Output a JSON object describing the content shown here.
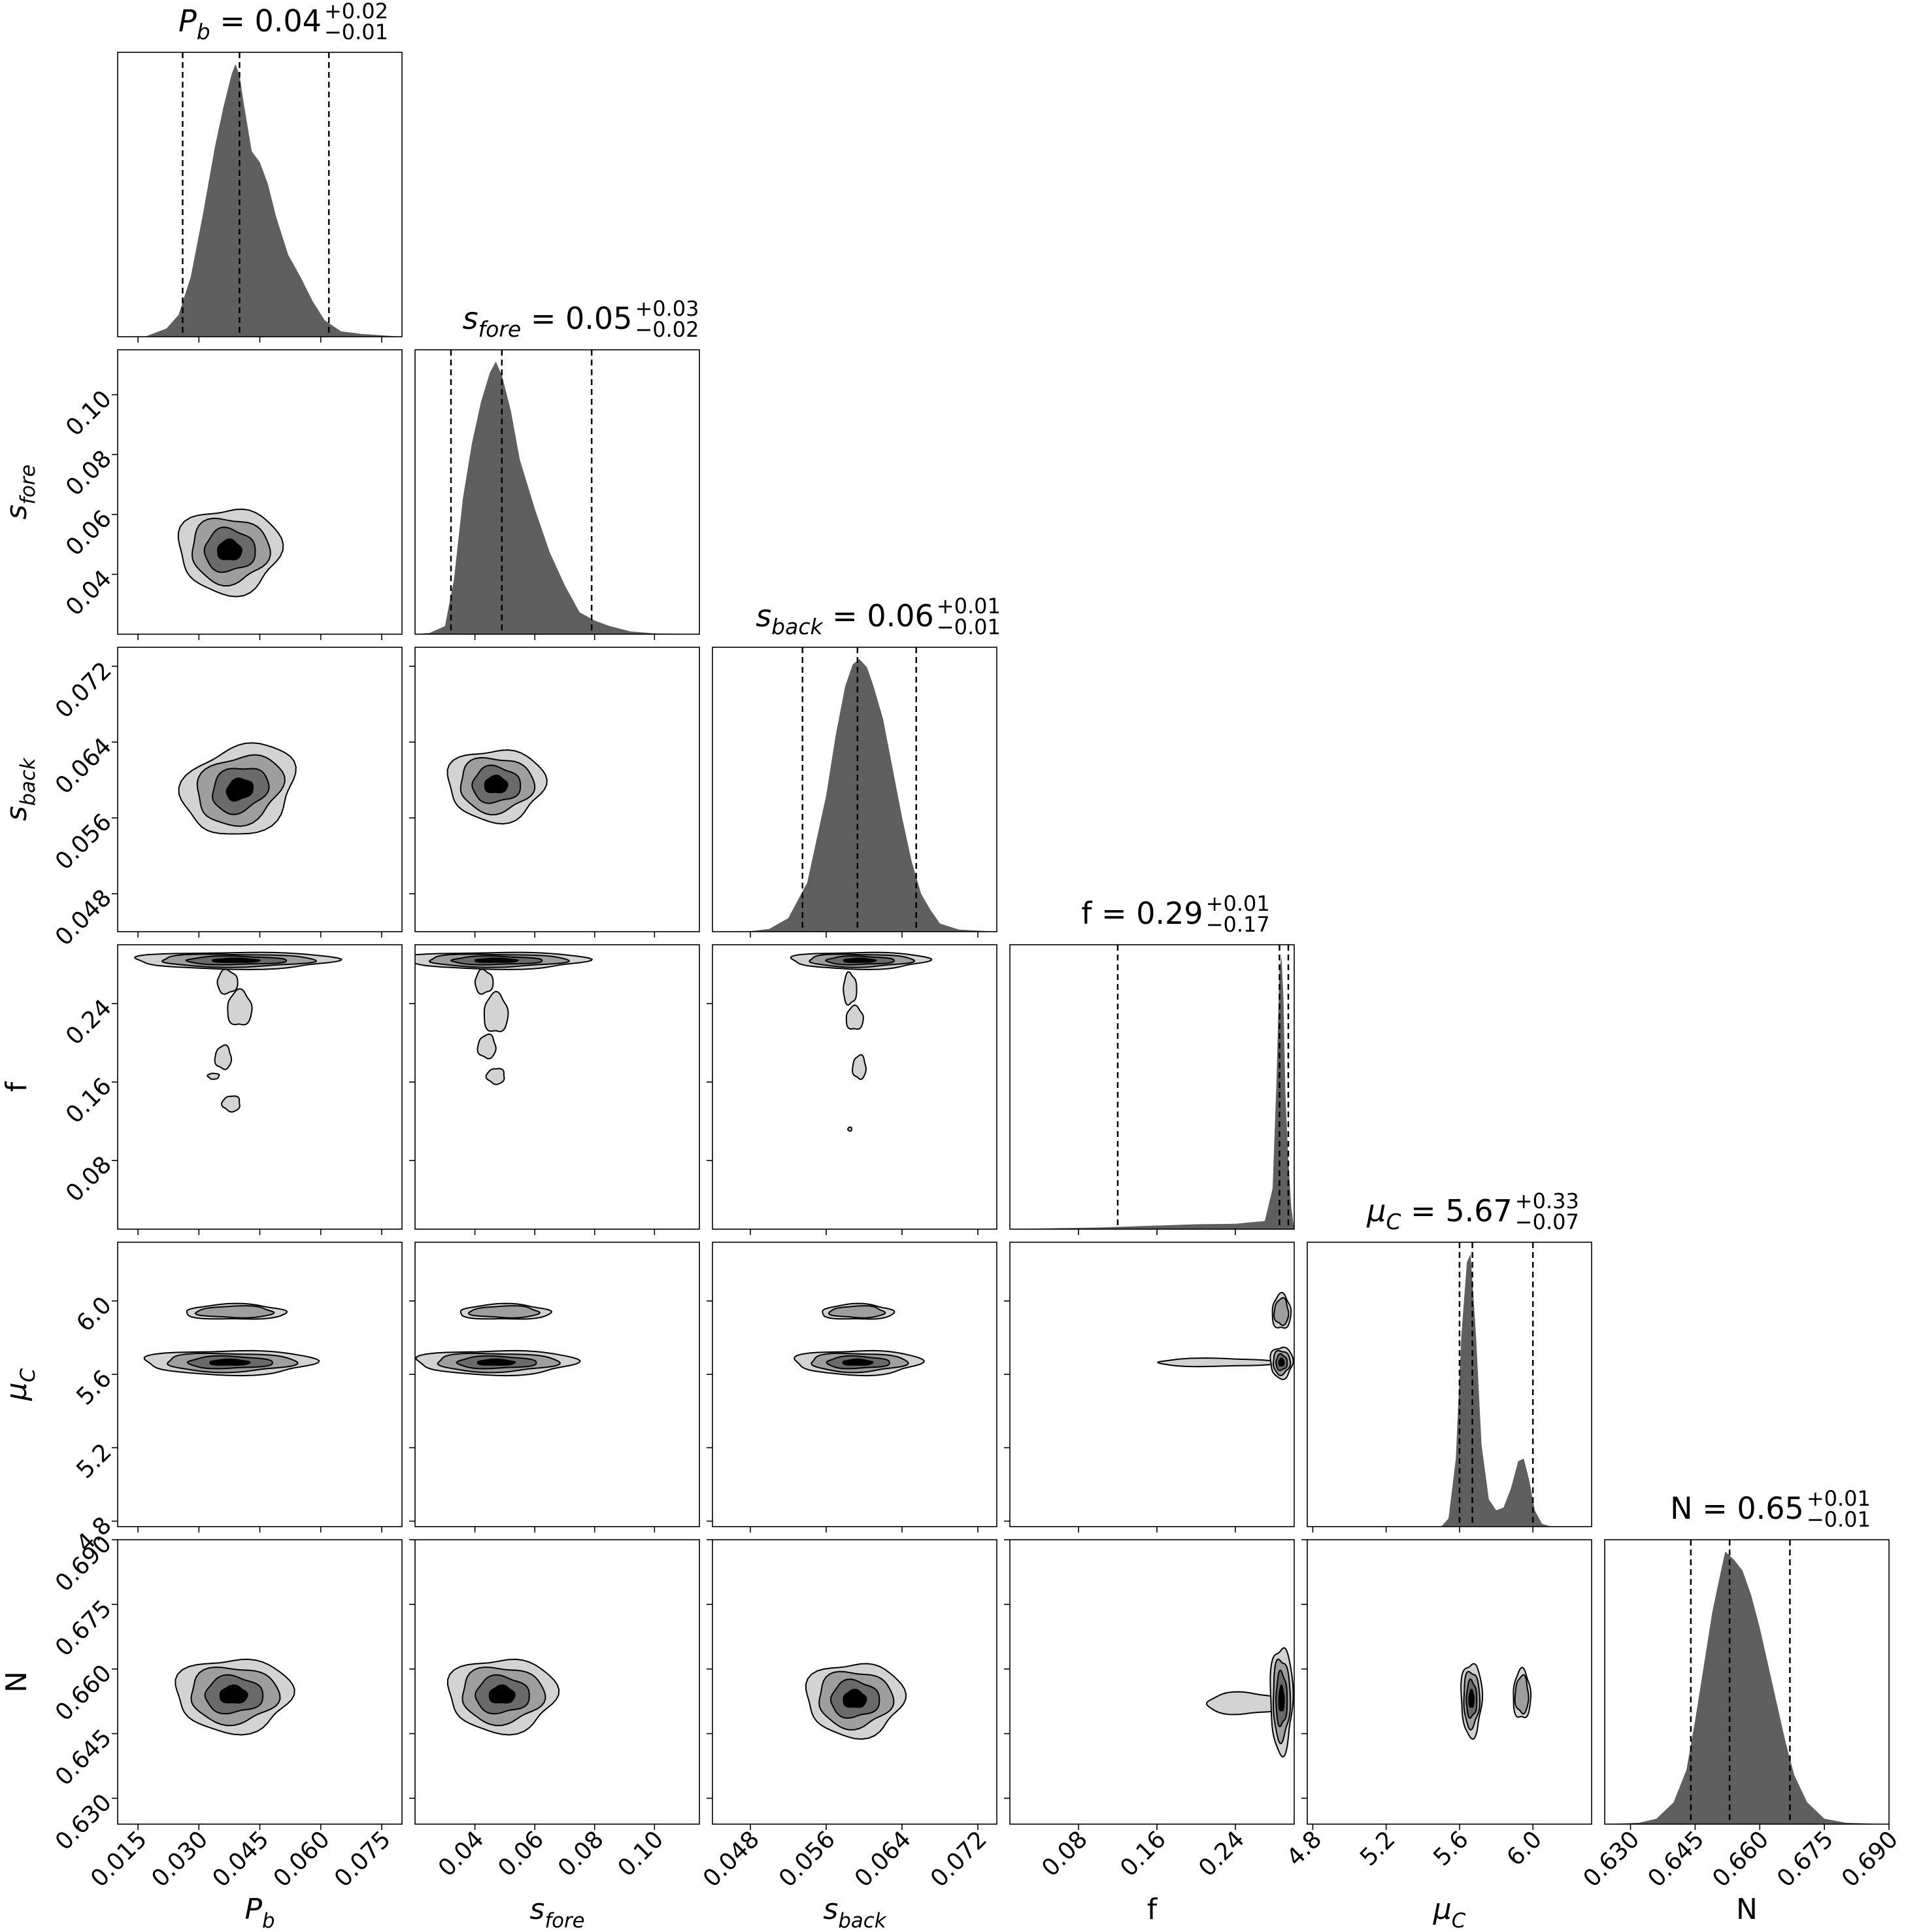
{
  "chart_data": {
    "type": "corner",
    "parameters": [
      {
        "key": "pb",
        "label": "P_b",
        "range": [
          0.01,
          0.08
        ],
        "ticks": [
          "0.015",
          "0.030",
          "0.045",
          "0.060",
          "0.075"
        ],
        "tick_values": [
          0.015,
          0.03,
          0.045,
          0.06,
          0.075
        ],
        "title": {
          "name": "P_b",
          "value": "0.04",
          "plus": "+0.02",
          "minus": "−0.01"
        },
        "quantiles": [
          0.026,
          0.04,
          0.062
        ]
      },
      {
        "key": "sfore",
        "label": "s_fore",
        "range": [
          0.02,
          0.115
        ],
        "ticks": [
          "0.04",
          "0.06",
          "0.08",
          "0.10"
        ],
        "tick_values": [
          0.04,
          0.06,
          0.08,
          0.1
        ],
        "title": {
          "name": "s_fore",
          "value": "0.05",
          "plus": "+0.03",
          "minus": "−0.02"
        },
        "quantiles": [
          0.032,
          0.049,
          0.079
        ]
      },
      {
        "key": "sback",
        "label": "s_back",
        "range": [
          0.044,
          0.074
        ],
        "ticks": [
          "0.048",
          "0.056",
          "0.064",
          "0.072"
        ],
        "tick_values": [
          0.048,
          0.056,
          0.064,
          0.072
        ],
        "title": {
          "name": "s_back",
          "value": "0.06",
          "plus": "+0.01",
          "minus": "−0.01"
        },
        "quantiles": [
          0.0535,
          0.0593,
          0.0655
        ]
      },
      {
        "key": "f",
        "label": "f",
        "range": [
          0.01,
          0.3
        ],
        "ticks": [
          "0.08",
          "0.16",
          "0.24"
        ],
        "tick_values": [
          0.08,
          0.16,
          0.24
        ],
        "title": {
          "name": "f",
          "value": "0.29",
          "plus": "+0.01",
          "minus": "−0.17"
        },
        "quantiles": [
          0.12,
          0.285,
          0.294
        ]
      },
      {
        "key": "muc",
        "label": "μ_C",
        "range": [
          4.77,
          6.32
        ],
        "ticks": [
          "4.8",
          "5.2",
          "5.6",
          "6.0"
        ],
        "tick_values": [
          4.8,
          5.2,
          5.6,
          6.0
        ],
        "title": {
          "name": "μ_C",
          "value": "5.67",
          "plus": "+0.33",
          "minus": "−0.07"
        },
        "quantiles": [
          5.6,
          5.67,
          6.0
        ]
      },
      {
        "key": "N",
        "label": "N",
        "range": [
          0.624,
          0.69
        ],
        "ticks": [
          "0.630",
          "0.645",
          "0.660",
          "0.675",
          "0.690"
        ],
        "tick_values": [
          0.63,
          0.645,
          0.66,
          0.675,
          0.69
        ],
        "title": {
          "name": "N",
          "value": "0.65",
          "plus": "+0.01",
          "minus": "−0.01"
        },
        "quantiles": [
          0.644,
          0.653,
          0.667
        ]
      }
    ],
    "histograms": {
      "pb": [
        [
          0.01,
          0
        ],
        [
          0.017,
          0.002
        ],
        [
          0.022,
          0.03
        ],
        [
          0.025,
          0.08
        ],
        [
          0.028,
          0.22
        ],
        [
          0.031,
          0.45
        ],
        [
          0.034,
          0.7
        ],
        [
          0.036,
          0.84
        ],
        [
          0.038,
          0.96
        ],
        [
          0.039,
          1.0
        ],
        [
          0.04,
          0.96
        ],
        [
          0.041,
          0.86
        ],
        [
          0.043,
          0.68
        ],
        [
          0.045,
          0.64
        ],
        [
          0.047,
          0.56
        ],
        [
          0.049,
          0.44
        ],
        [
          0.052,
          0.3
        ],
        [
          0.055,
          0.22
        ],
        [
          0.058,
          0.13
        ],
        [
          0.061,
          0.06
        ],
        [
          0.065,
          0.02
        ],
        [
          0.07,
          0.01
        ],
        [
          0.08,
          0
        ]
      ],
      "sfore": [
        [
          0.02,
          0
        ],
        [
          0.025,
          0.005
        ],
        [
          0.03,
          0.03
        ],
        [
          0.033,
          0.2
        ],
        [
          0.036,
          0.5
        ],
        [
          0.039,
          0.7
        ],
        [
          0.042,
          0.85
        ],
        [
          0.045,
          0.96
        ],
        [
          0.047,
          1.0
        ],
        [
          0.049,
          0.95
        ],
        [
          0.052,
          0.82
        ],
        [
          0.055,
          0.64
        ],
        [
          0.06,
          0.46
        ],
        [
          0.065,
          0.3
        ],
        [
          0.07,
          0.18
        ],
        [
          0.075,
          0.08
        ],
        [
          0.08,
          0.05
        ],
        [
          0.085,
          0.03
        ],
        [
          0.092,
          0.01
        ],
        [
          0.1,
          0.003
        ],
        [
          0.115,
          0
        ]
      ],
      "sback": [
        [
          0.044,
          0
        ],
        [
          0.048,
          0.002
        ],
        [
          0.05,
          0.01
        ],
        [
          0.052,
          0.05
        ],
        [
          0.054,
          0.18
        ],
        [
          0.056,
          0.5
        ],
        [
          0.057,
          0.72
        ],
        [
          0.058,
          0.9
        ],
        [
          0.0588,
          0.98
        ],
        [
          0.0595,
          1.0
        ],
        [
          0.0603,
          0.97
        ],
        [
          0.061,
          0.9
        ],
        [
          0.062,
          0.78
        ],
        [
          0.063,
          0.6
        ],
        [
          0.064,
          0.42
        ],
        [
          0.065,
          0.26
        ],
        [
          0.066,
          0.14
        ],
        [
          0.067,
          0.08
        ],
        [
          0.068,
          0.03
        ],
        [
          0.07,
          0.008
        ],
        [
          0.074,
          0
        ]
      ],
      "f": [
        [
          0.01,
          0
        ],
        [
          0.05,
          0.003
        ],
        [
          0.1,
          0.006
        ],
        [
          0.15,
          0.012
        ],
        [
          0.2,
          0.018
        ],
        [
          0.24,
          0.02
        ],
        [
          0.27,
          0.03
        ],
        [
          0.278,
          0.15
        ],
        [
          0.282,
          0.55
        ],
        [
          0.285,
          0.95
        ],
        [
          0.287,
          1.0
        ],
        [
          0.289,
          0.85
        ],
        [
          0.291,
          0.5
        ],
        [
          0.294,
          0.25
        ],
        [
          0.297,
          0.08
        ],
        [
          0.3,
          0
        ]
      ],
      "muc": [
        [
          4.77,
          0
        ],
        [
          5.5,
          0
        ],
        [
          5.54,
          0.03
        ],
        [
          5.58,
          0.25
        ],
        [
          5.61,
          0.7
        ],
        [
          5.64,
          0.97
        ],
        [
          5.66,
          1.0
        ],
        [
          5.69,
          0.7
        ],
        [
          5.72,
          0.3
        ],
        [
          5.76,
          0.1
        ],
        [
          5.8,
          0.06
        ],
        [
          5.84,
          0.07
        ],
        [
          5.88,
          0.14
        ],
        [
          5.92,
          0.24
        ],
        [
          5.95,
          0.25
        ],
        [
          5.98,
          0.17
        ],
        [
          6.01,
          0.06
        ],
        [
          6.05,
          0.01
        ],
        [
          6.1,
          0
        ],
        [
          6.32,
          0
        ]
      ],
      "N": [
        [
          0.624,
          0
        ],
        [
          0.632,
          0.005
        ],
        [
          0.636,
          0.02
        ],
        [
          0.64,
          0.08
        ],
        [
          0.643,
          0.2
        ],
        [
          0.645,
          0.38
        ],
        [
          0.647,
          0.58
        ],
        [
          0.649,
          0.78
        ],
        [
          0.651,
          0.93
        ],
        [
          0.652,
          1.0
        ],
        [
          0.654,
          0.97
        ],
        [
          0.656,
          0.93
        ],
        [
          0.658,
          0.84
        ],
        [
          0.66,
          0.72
        ],
        [
          0.662,
          0.58
        ],
        [
          0.664,
          0.44
        ],
        [
          0.666,
          0.3
        ],
        [
          0.668,
          0.18
        ],
        [
          0.671,
          0.08
        ],
        [
          0.675,
          0.02
        ],
        [
          0.68,
          0.005
        ],
        [
          0.69,
          0
        ]
      ]
    },
    "contour_clusters": {
      "sfore|pb": [
        {
          "cx": 0.0375,
          "cy": 0.048,
          "sx": 0.0066,
          "sy": 0.0075,
          "rot": 0
        }
      ],
      "sback|pb": [
        {
          "cx": 0.04,
          "cy": 0.059,
          "sx": 0.0075,
          "sy": 0.0024,
          "rot": -0.38
        }
      ],
      "sback|sfore": [
        {
          "cx": 0.047,
          "cy": 0.0595,
          "sx": 0.0085,
          "sy": 0.002,
          "rot": 0
        }
      ],
      "f|pb": [
        {
          "cx": 0.039,
          "cy": 0.284,
          "sx": 0.013,
          "sy": 0.0045,
          "rot": 0
        }
      ],
      "f|sfore": [
        {
          "cx": 0.047,
          "cy": 0.284,
          "sx": 0.016,
          "sy": 0.0045,
          "rot": 0
        }
      ],
      "f|sback": [
        {
          "cx": 0.0595,
          "cy": 0.284,
          "sx": 0.0038,
          "sy": 0.0045,
          "rot": 0
        }
      ],
      "muc|pb": [
        {
          "cx": 0.0375,
          "cy": 5.665,
          "sx": 0.011,
          "sy": 0.035,
          "rot": 0,
          "levels": 4
        },
        {
          "cx": 0.039,
          "cy": 5.94,
          "sx": 0.0065,
          "sy": 0.022,
          "rot": 0,
          "levels": 2
        }
      ],
      "muc|sfore": [
        {
          "cx": 0.047,
          "cy": 5.665,
          "sx": 0.014,
          "sy": 0.035,
          "rot": 0,
          "levels": 4
        },
        {
          "cx": 0.05,
          "cy": 5.94,
          "sx": 0.008,
          "sy": 0.022,
          "rot": 0,
          "levels": 2
        }
      ],
      "muc|sback": [
        {
          "cx": 0.0593,
          "cy": 5.665,
          "sx": 0.0035,
          "sy": 0.035,
          "rot": 0,
          "levels": 4
        },
        {
          "cx": 0.0593,
          "cy": 5.94,
          "sx": 0.002,
          "sy": 0.022,
          "rot": 0,
          "levels": 2
        }
      ],
      "muc|f": [
        {
          "cx": 0.287,
          "cy": 5.665,
          "sx": 0.006,
          "sy": 0.045,
          "rot": 0,
          "levels": 4
        },
        {
          "cx": 0.287,
          "cy": 5.94,
          "sx": 0.005,
          "sy": 0.05,
          "rot": 0,
          "levels": 2
        }
      ],
      "N|pb": [
        {
          "cx": 0.0385,
          "cy": 0.654,
          "sx": 0.0075,
          "sy": 0.0045,
          "rot": 0
        }
      ],
      "N|sfore": [
        {
          "cx": 0.049,
          "cy": 0.654,
          "sx": 0.0095,
          "sy": 0.0045,
          "rot": 0
        }
      ],
      "N|sback": [
        {
          "cx": 0.059,
          "cy": 0.653,
          "sx": 0.0027,
          "sy": 0.0045,
          "rot": 0
        }
      ],
      "N|f": [
        {
          "cx": 0.287,
          "cy": 0.653,
          "sx": 0.006,
          "sy": 0.0065,
          "rot": 0
        }
      ],
      "N|muc": [
        {
          "cx": 5.665,
          "cy": 0.653,
          "sx": 0.03,
          "sy": 0.0045,
          "rot": 0,
          "levels": 4
        },
        {
          "cx": 5.94,
          "cy": 0.654,
          "sx": 0.025,
          "sy": 0.003,
          "rot": 0,
          "levels": 2
        }
      ]
    },
    "tails": {
      "f|pb": [
        [
          0.037,
          0.262,
          0.0025,
          0.012
        ],
        [
          0.04,
          0.235,
          0.003,
          0.018
        ],
        [
          0.036,
          0.185,
          0.002,
          0.012
        ],
        [
          0.038,
          0.138,
          0.0022,
          0.008
        ],
        [
          0.0336,
          0.166,
          0.0014,
          0.003
        ]
      ],
      "f|sfore": [
        [
          0.043,
          0.262,
          0.003,
          0.012
        ],
        [
          0.047,
          0.23,
          0.004,
          0.02
        ],
        [
          0.044,
          0.196,
          0.003,
          0.012
        ],
        [
          0.047,
          0.166,
          0.003,
          0.008
        ]
      ],
      "f|sback": [
        [
          0.0585,
          0.255,
          0.0007,
          0.016
        ],
        [
          0.059,
          0.225,
          0.0009,
          0.012
        ],
        [
          0.0595,
          0.175,
          0.0007,
          0.012
        ],
        [
          0.0585,
          0.112,
          0.0002,
          0.002
        ]
      ],
      "muc|f": [
        [
          0.22,
          5.665,
          0.06,
          0.022
        ]
      ],
      "N|f": [
        [
          0.25,
          0.652,
          0.04,
          0.0025
        ]
      ]
    },
    "ylabels": [
      "",
      "s_fore",
      "s_back",
      "f",
      "μ_C",
      "N"
    ],
    "xlabels": [
      "P_b",
      "s_fore",
      "s_back",
      "f",
      "μ_C",
      "N"
    ],
    "colors": {
      "fill_hist": "#5f5f5f",
      "level1": "#d3d3d3",
      "level2": "#9e9e9e",
      "level3": "#6a6a6a",
      "level4": "#000000",
      "quantile_line": "#000000"
    }
  }
}
